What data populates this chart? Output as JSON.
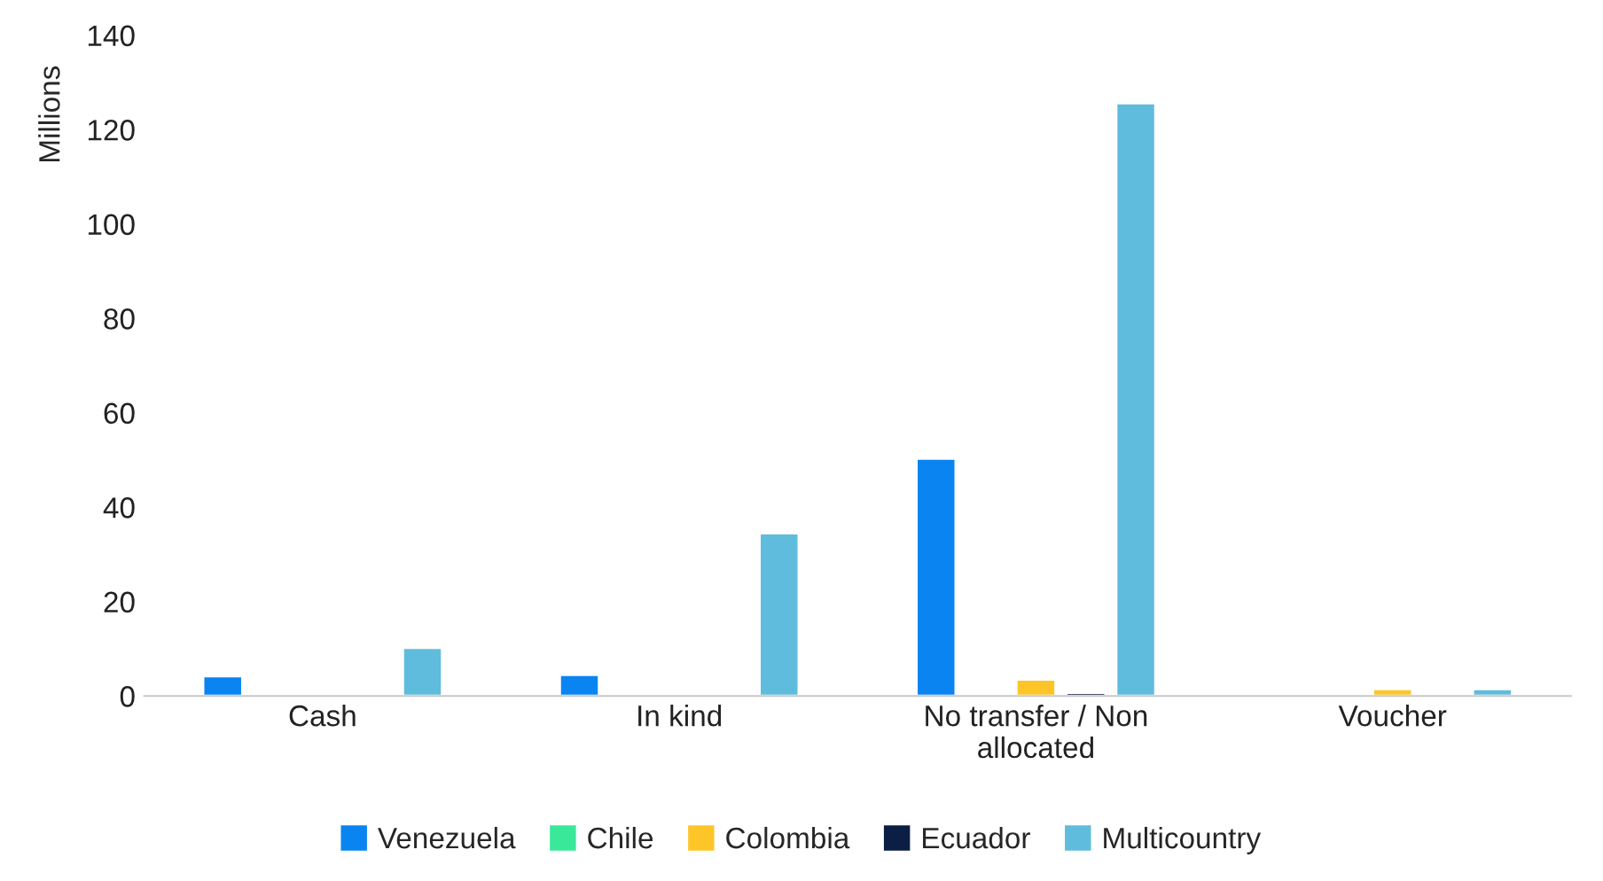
{
  "chart_data": {
    "type": "bar",
    "ylabel": "Millions",
    "categories": [
      "Cash",
      "In kind",
      "No transfer / Non allocated",
      "Voucher"
    ],
    "series": [
      {
        "name": "Venezuela",
        "color": "#0a84f0",
        "values": [
          4.2,
          4.5,
          50.3,
          null
        ]
      },
      {
        "name": "Chile",
        "color": "#3ae89a",
        "values": [
          null,
          null,
          null,
          null
        ]
      },
      {
        "name": "Colombia",
        "color": "#fdc528",
        "values": [
          null,
          null,
          3.5,
          1.5
        ]
      },
      {
        "name": "Ecuador",
        "color": "#0b1f45",
        "values": [
          null,
          null,
          0.7,
          null
        ]
      },
      {
        "name": "Multicountry",
        "color": "#60bcdc",
        "values": [
          10.2,
          34.5,
          125.6,
          1.5
        ]
      }
    ],
    "ylim": [
      0,
      140
    ],
    "yticks": [
      0,
      20,
      40,
      60,
      80,
      100,
      120,
      140
    ],
    "grid": false,
    "legend": "bottom"
  }
}
